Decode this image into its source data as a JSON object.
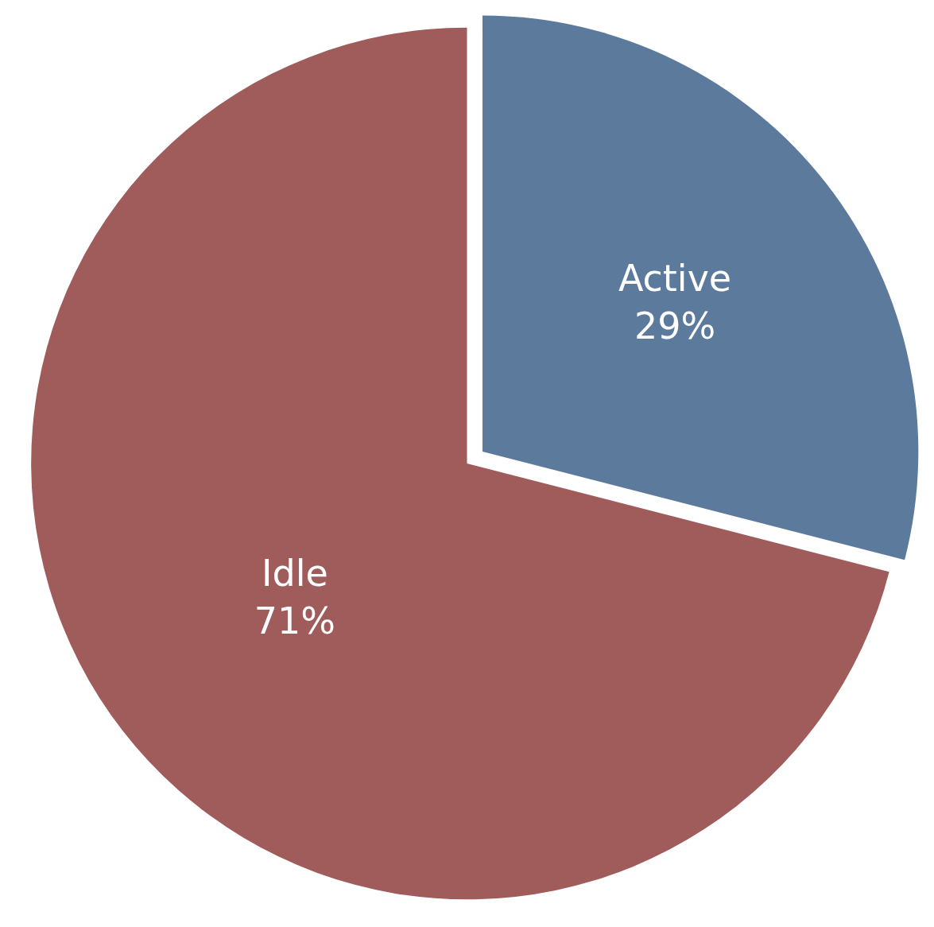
{
  "chart_data": {
    "type": "pie",
    "categories": [
      "Active",
      "Idle"
    ],
    "values": [
      29,
      71
    ],
    "value_labels": [
      "29%",
      "71%"
    ],
    "colors": [
      "#5b7a9c",
      "#a05b5b"
    ],
    "legend": false
  }
}
